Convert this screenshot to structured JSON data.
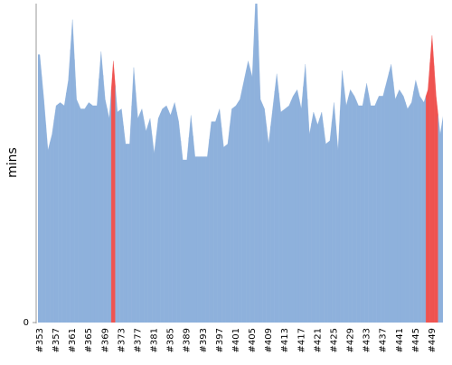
{
  "chart_data": {
    "type": "area",
    "y_label": "mins",
    "categories": [
      "#353",
      null,
      null,
      null,
      "#357",
      null,
      null,
      null,
      "#361",
      null,
      null,
      null,
      "#365",
      null,
      null,
      null,
      "#369",
      null,
      null,
      null,
      "#373",
      null,
      null,
      null,
      "#377",
      null,
      null,
      null,
      "#381",
      null,
      null,
      null,
      "#385",
      null,
      null,
      null,
      "#389",
      null,
      null,
      null,
      "#393",
      null,
      null,
      null,
      "#397",
      null,
      null,
      null,
      "#401",
      null,
      null,
      null,
      "#405",
      null,
      null,
      null,
      "#409",
      null,
      null,
      null,
      "#413",
      null,
      null,
      null,
      "#417",
      null,
      null,
      null,
      "#421",
      null,
      null,
      null,
      "#425",
      null,
      null,
      null,
      "#429",
      null,
      null,
      null,
      "#433",
      null,
      null,
      null,
      "#437",
      null,
      null,
      null,
      "#441",
      null,
      null,
      null,
      "#445",
      null,
      null,
      null,
      "#449",
      null,
      null,
      null
    ],
    "values": [
      84,
      70,
      54,
      59,
      68,
      69,
      68,
      76,
      95,
      70,
      67,
      67,
      69,
      68,
      68,
      85,
      70,
      64,
      82,
      66,
      67,
      56,
      56,
      80,
      64,
      67,
      60,
      64,
      53,
      64,
      67,
      68,
      65,
      69,
      63,
      51,
      51,
      65,
      52,
      52,
      52,
      52,
      63,
      63,
      67,
      55,
      56,
      67,
      68,
      70,
      76,
      82,
      77,
      107,
      70,
      67,
      56,
      67,
      78,
      66,
      67,
      68,
      71,
      73,
      67,
      81,
      59,
      66,
      62,
      66,
      56,
      57,
      69,
      54,
      79,
      68,
      73,
      71,
      68,
      68,
      75,
      68,
      68,
      71,
      71,
      76,
      81,
      70,
      73,
      71,
      67,
      69,
      76,
      71,
      69,
      73,
      90,
      71,
      59,
      67
    ],
    "colors": [
      "#8eb1dc",
      "#8eb1dc",
      "#8eb1dc",
      "#8eb1dc",
      "#8eb1dc",
      "#8eb1dc",
      "#8eb1dc",
      "#8eb1dc",
      "#8eb1dc",
      "#8eb1dc",
      "#8eb1dc",
      "#8eb1dc",
      "#8eb1dc",
      "#8eb1dc",
      "#8eb1dc",
      "#8eb1dc",
      "#8eb1dc",
      "#8eb1dc",
      "#ef5350",
      "#8eb1dc",
      "#8eb1dc",
      "#8eb1dc",
      "#8eb1dc",
      "#8eb1dc",
      "#8eb1dc",
      "#8eb1dc",
      "#8eb1dc",
      "#8eb1dc",
      "#8eb1dc",
      "#8eb1dc",
      "#8eb1dc",
      "#8eb1dc",
      "#8eb1dc",
      "#8eb1dc",
      "#8eb1dc",
      "#8eb1dc",
      "#8eb1dc",
      "#8eb1dc",
      "#8eb1dc",
      "#8eb1dc",
      "#8eb1dc",
      "#8eb1dc",
      "#8eb1dc",
      "#8eb1dc",
      "#8eb1dc",
      "#8eb1dc",
      "#8eb1dc",
      "#8eb1dc",
      "#8eb1dc",
      "#8eb1dc",
      "#8eb1dc",
      "#8eb1dc",
      "#8eb1dc",
      "#8eb1dc",
      "#8eb1dc",
      "#8eb1dc",
      "#8eb1dc",
      "#8eb1dc",
      "#8eb1dc",
      "#8eb1dc",
      "#8eb1dc",
      "#8eb1dc",
      "#8eb1dc",
      "#8eb1dc",
      "#8eb1dc",
      "#8eb1dc",
      "#8eb1dc",
      "#8eb1dc",
      "#8eb1dc",
      "#8eb1dc",
      "#8eb1dc",
      "#8eb1dc",
      "#8eb1dc",
      "#8eb1dc",
      "#8eb1dc",
      "#8eb1dc",
      "#8eb1dc",
      "#8eb1dc",
      "#8eb1dc",
      "#8eb1dc",
      "#8eb1dc",
      "#8eb1dc",
      "#8eb1dc",
      "#8eb1dc",
      "#8eb1dc",
      "#8eb1dc",
      "#8eb1dc",
      "#8eb1dc",
      "#8eb1dc",
      "#8eb1dc",
      "#8eb1dc",
      "#8eb1dc",
      "#8eb1dc",
      "#8eb1dc",
      "#8eb1dc",
      "#ef5350",
      "#ef5350",
      "#ef5350",
      "#8eb1dc",
      "#8eb1dc"
    ],
    "ylim": [
      0,
      100
    ],
    "yticks": [
      0
    ]
  }
}
